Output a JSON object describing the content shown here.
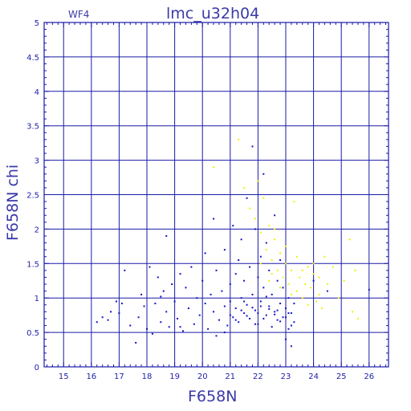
{
  "chart_data": {
    "type": "scatter",
    "title": "lmc_u32h04",
    "subtitle": "WF4",
    "xlabel": "F658N",
    "ylabel": "F658N chi",
    "xlim": [
      14.3,
      26.7
    ],
    "ylim": [
      0,
      5
    ],
    "x_ticks": [
      "15",
      "16",
      "17",
      "18",
      "19",
      "20",
      "21",
      "22",
      "23",
      "24",
      "25",
      "26"
    ],
    "y_ticks": [
      "0",
      "0.5",
      "1",
      "1.5",
      "2",
      "2.5",
      "3",
      "3.5",
      "4",
      "4.5",
      "5"
    ],
    "grid": true,
    "minor_ticks": true,
    "colors": {
      "axis": "#1a1aa8",
      "grid": "#1a1aa8",
      "series_blue": "#1414c8",
      "series_yellow": "#f0f000"
    },
    "series": [
      {
        "color": "#1414c8",
        "points": [
          [
            16.2,
            0.65
          ],
          [
            16.4,
            0.72
          ],
          [
            16.6,
            0.68
          ],
          [
            16.9,
            0.95
          ],
          [
            17.0,
            0.78
          ],
          [
            17.2,
            1.4
          ],
          [
            17.4,
            0.6
          ],
          [
            17.6,
            0.35
          ],
          [
            17.7,
            0.72
          ],
          [
            17.8,
            1.05
          ],
          [
            17.9,
            0.88
          ],
          [
            18.0,
            0.55
          ],
          [
            18.1,
            1.45
          ],
          [
            18.2,
            0.48
          ],
          [
            18.3,
            0.92
          ],
          [
            18.4,
            1.3
          ],
          [
            18.5,
            0.65
          ],
          [
            18.6,
            1.1
          ],
          [
            18.7,
            1.9
          ],
          [
            18.7,
            0.8
          ],
          [
            18.8,
            0.58
          ],
          [
            18.9,
            1.2
          ],
          [
            19.0,
            0.95
          ],
          [
            19.1,
            0.7
          ],
          [
            19.2,
            1.35
          ],
          [
            19.3,
            0.52
          ],
          [
            19.4,
            1.15
          ],
          [
            19.5,
            0.85
          ],
          [
            19.6,
            1.45
          ],
          [
            19.7,
            0.62
          ],
          [
            19.8,
            1.0
          ],
          [
            19.9,
            0.75
          ],
          [
            20.0,
            1.25
          ],
          [
            20.1,
            0.92
          ],
          [
            20.1,
            1.65
          ],
          [
            20.2,
            0.55
          ],
          [
            20.3,
            1.05
          ],
          [
            20.4,
            0.8
          ],
          [
            20.4,
            2.15
          ],
          [
            20.5,
            1.4
          ],
          [
            20.6,
            0.68
          ],
          [
            20.7,
            1.1
          ],
          [
            20.8,
            0.88
          ],
          [
            20.8,
            1.7
          ],
          [
            20.9,
            0.6
          ],
          [
            21.0,
            1.2
          ],
          [
            21.0,
            0.95
          ],
          [
            21.1,
            2.05
          ],
          [
            21.1,
            0.72
          ],
          [
            21.2,
            1.35
          ],
          [
            21.2,
            0.85
          ],
          [
            21.3,
            1.55
          ],
          [
            21.3,
            0.65
          ],
          [
            21.4,
            1.0
          ],
          [
            21.4,
            1.85
          ],
          [
            21.5,
            0.78
          ],
          [
            21.5,
            1.25
          ],
          [
            21.6,
            0.9
          ],
          [
            21.6,
            2.45
          ],
          [
            21.7,
            0.7
          ],
          [
            21.7,
            1.45
          ],
          [
            21.8,
            3.2
          ],
          [
            21.8,
            1.05
          ],
          [
            21.9,
            0.82
          ],
          [
            21.9,
            2.0
          ],
          [
            22.0,
            1.3
          ],
          [
            22.0,
            0.62
          ],
          [
            22.1,
            1.6
          ],
          [
            22.1,
            0.95
          ],
          [
            22.2,
            2.8
          ],
          [
            22.2,
            1.15
          ],
          [
            22.3,
            0.75
          ],
          [
            22.3,
            1.8
          ],
          [
            22.4,
            0.88
          ],
          [
            22.4,
            1.4
          ],
          [
            22.5,
            0.58
          ],
          [
            22.5,
            1.05
          ],
          [
            22.6,
            2.2
          ],
          [
            22.6,
            0.8
          ],
          [
            22.7,
            1.25
          ],
          [
            22.7,
            0.68
          ],
          [
            22.8,
            1.55
          ],
          [
            22.8,
            0.92
          ],
          [
            22.9,
            0.72
          ],
          [
            22.9,
            1.15
          ],
          [
            23.0,
            0.85
          ],
          [
            23.0,
            0.4
          ],
          [
            23.1,
            1.0
          ],
          [
            23.1,
            0.55
          ],
          [
            23.2,
            0.78
          ],
          [
            23.2,
            0.3
          ],
          [
            23.3,
            0.65
          ],
          [
            23.3,
            0.92
          ],
          [
            21.0,
            0.75
          ],
          [
            21.2,
            0.68
          ],
          [
            21.4,
            0.82
          ],
          [
            21.6,
            0.74
          ],
          [
            21.8,
            0.86
          ],
          [
            22.0,
            0.78
          ],
          [
            22.2,
            0.7
          ],
          [
            22.4,
            0.84
          ],
          [
            22.6,
            0.76
          ],
          [
            22.8,
            0.66
          ],
          [
            23.0,
            0.72
          ],
          [
            23.2,
            0.6
          ],
          [
            21.5,
            0.95
          ],
          [
            22.1,
            0.88
          ],
          [
            22.7,
            0.82
          ],
          [
            23.1,
            0.78
          ],
          [
            22.3,
            1.02
          ],
          [
            24.0,
            1.25
          ],
          [
            24.5,
            1.1
          ],
          [
            26.0,
            1.12
          ],
          [
            20.5,
            0.45
          ],
          [
            19.2,
            0.58
          ],
          [
            18.5,
            1.02
          ],
          [
            17.1,
            0.92
          ],
          [
            16.7,
            0.8
          ],
          [
            20.8,
            0.5
          ],
          [
            21.9,
            0.62
          ]
        ]
      },
      {
        "color": "#f0f000",
        "points": [
          [
            20.4,
            2.9
          ],
          [
            21.3,
            3.3
          ],
          [
            21.5,
            2.6
          ],
          [
            21.7,
            2.3
          ],
          [
            21.9,
            2.15
          ],
          [
            22.0,
            2.7
          ],
          [
            22.1,
            1.95
          ],
          [
            22.2,
            2.45
          ],
          [
            22.3,
            1.7
          ],
          [
            22.4,
            2.05
          ],
          [
            22.5,
            1.55
          ],
          [
            22.6,
            1.85
          ],
          [
            22.7,
            1.4
          ],
          [
            22.8,
            1.65
          ],
          [
            22.9,
            1.3
          ],
          [
            23.0,
            1.5
          ],
          [
            23.1,
            1.2
          ],
          [
            23.2,
            1.4
          ],
          [
            23.3,
            2.4
          ],
          [
            23.4,
            1.1
          ],
          [
            23.5,
            1.3
          ],
          [
            23.6,
            1.0
          ],
          [
            23.7,
            1.2
          ],
          [
            23.8,
            0.9
          ],
          [
            23.9,
            1.15
          ],
          [
            24.0,
            1.35
          ],
          [
            24.1,
            0.95
          ],
          [
            24.2,
            1.05
          ],
          [
            24.3,
            0.85
          ],
          [
            24.5,
            1.2
          ],
          [
            24.7,
            1.45
          ],
          [
            24.9,
            1.0
          ],
          [
            25.1,
            1.25
          ],
          [
            25.3,
            1.85
          ],
          [
            25.4,
            0.8
          ],
          [
            25.5,
            1.4
          ],
          [
            25.6,
            0.7
          ],
          [
            22.4,
            1.25
          ],
          [
            22.8,
            1.15
          ],
          [
            23.2,
            1.05
          ],
          [
            23.6,
            1.4
          ],
          [
            24.0,
            1.5
          ],
          [
            24.4,
            1.6
          ],
          [
            22.6,
            2.0
          ],
          [
            23.0,
            1.75
          ],
          [
            23.4,
            1.6
          ],
          [
            23.8,
            1.45
          ],
          [
            24.2,
            1.3
          ],
          [
            22.1,
            1.5
          ],
          [
            22.5,
            1.35
          ]
        ]
      }
    ]
  }
}
